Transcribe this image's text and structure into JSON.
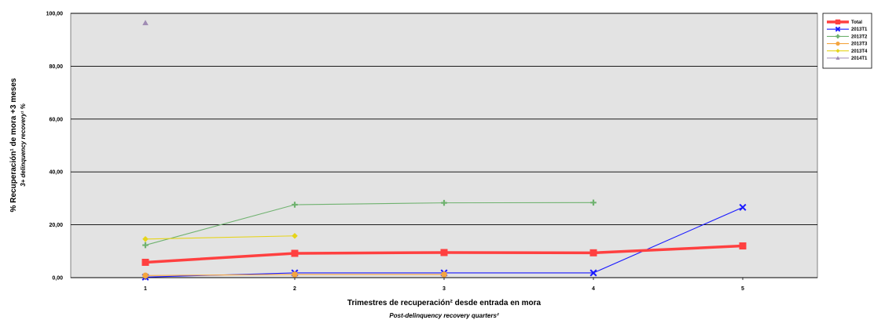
{
  "chart_data": {
    "type": "line",
    "xlabel": "Trimestres de recuperación² desde entrada en mora",
    "xlabel_sub": "Post-delinquency recovery quarters²",
    "ylabel": "% Recuperación¹ de mora +3 meses",
    "ylabel_sub": "3+ delinquency recovery¹ %",
    "x_ticks": [
      "1",
      "2",
      "3",
      "4",
      "5"
    ],
    "y_ticks": [
      "0,00",
      "20,00",
      "40,00",
      "60,00",
      "80,00",
      "100,00"
    ],
    "xlim": [
      0.5,
      5.5
    ],
    "ylim": [
      0,
      100
    ],
    "grid": "horizontal",
    "legend_position": "top-right",
    "plot_background": "#e3e3e3",
    "series": [
      {
        "name": "Total",
        "color": "#ff4040",
        "marker": "square",
        "x": [
          1,
          2,
          3,
          4,
          5
        ],
        "values": [
          5.8,
          9.2,
          9.5,
          9.4,
          12.0
        ]
      },
      {
        "name": "2013T1",
        "color": "#1a1aff",
        "marker": "x",
        "x": [
          1,
          2,
          3,
          4,
          5
        ],
        "values": [
          0.2,
          1.8,
          1.8,
          1.8,
          26.6
        ]
      },
      {
        "name": "2013T2",
        "color": "#6fb26f",
        "marker": "plus",
        "x": [
          1,
          2,
          3,
          4
        ],
        "values": [
          12.3,
          27.6,
          28.3,
          28.4
        ]
      },
      {
        "name": "2013T3",
        "color": "#f4a540",
        "marker": "circle",
        "x": [
          1,
          2,
          3
        ],
        "values": [
          0.8,
          1.2,
          1.2
        ]
      },
      {
        "name": "2013T4",
        "color": "#e6d41a",
        "marker": "diamond",
        "x": [
          1,
          2
        ],
        "values": [
          14.6,
          15.8
        ]
      },
      {
        "name": "2014T1",
        "color": "#a08cb4",
        "marker": "triangle",
        "x": [
          1
        ],
        "values": [
          96.4
        ]
      }
    ]
  }
}
